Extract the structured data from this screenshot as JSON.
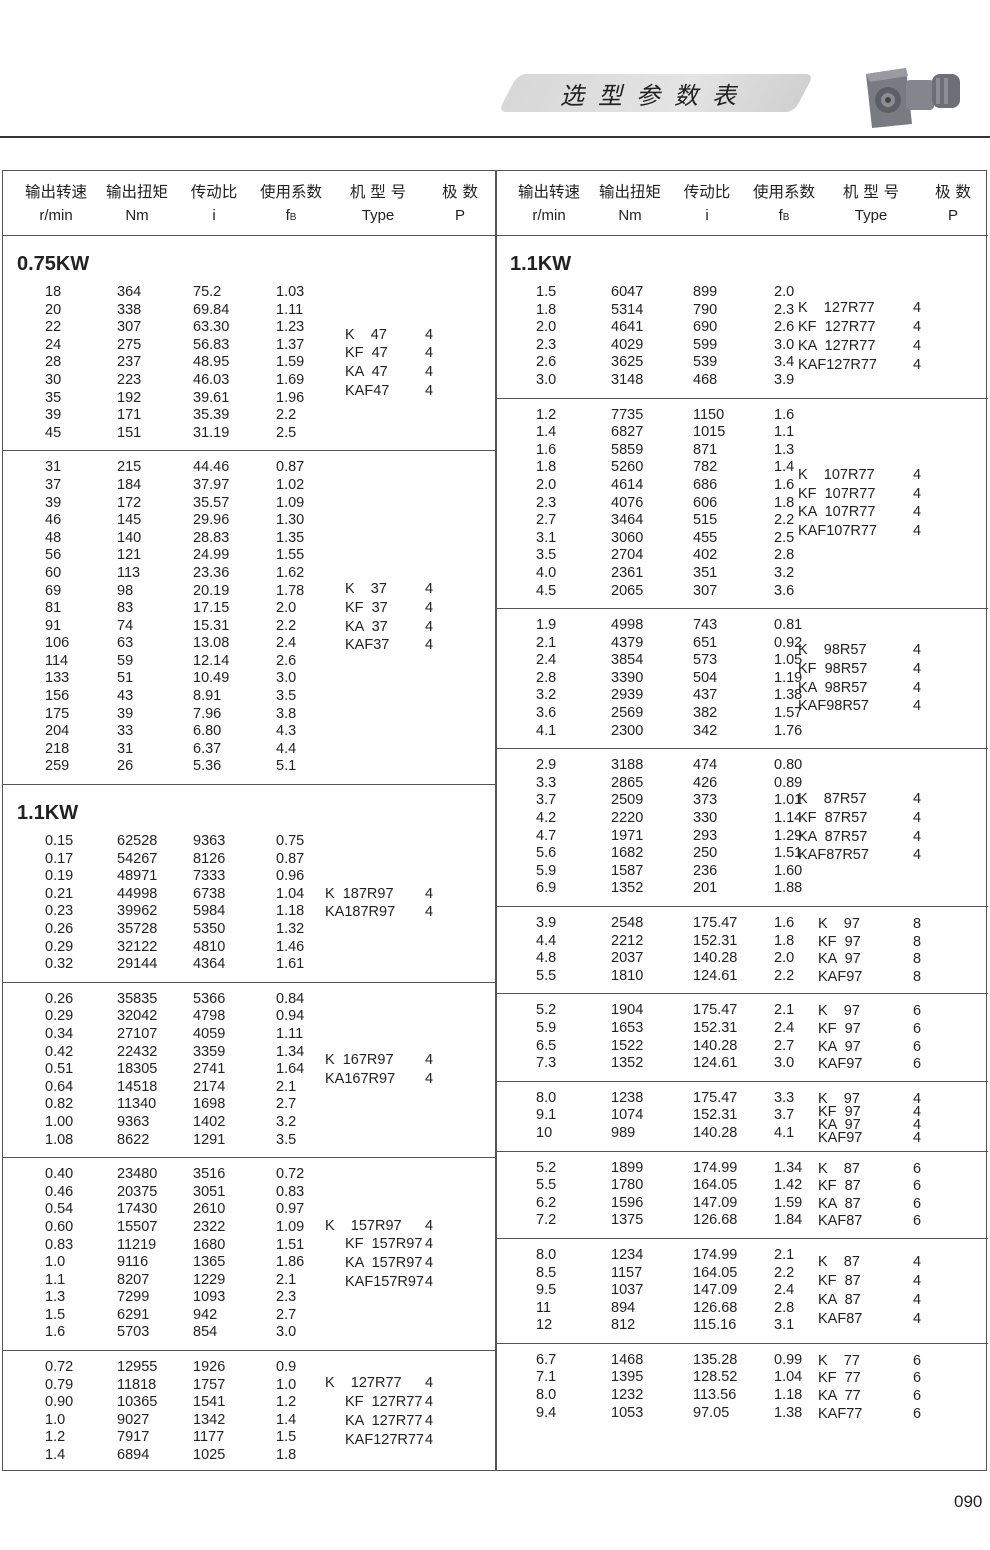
{
  "header": {
    "title": "选型参数表",
    "page_number": "090",
    "columns_cn": [
      "输出转速",
      "输出扭矩",
      "传动比",
      "使用系数",
      "机 型 号",
      "极 数"
    ],
    "columns_en": [
      "r/min",
      "Nm",
      "i",
      "f",
      "Type",
      "P"
    ],
    "fb_subscript": "B"
  },
  "left": [
    {
      "section": "0.75KW",
      "rows": [
        [
          "18",
          "364",
          "75.2",
          "1.03"
        ],
        [
          "20",
          "338",
          "69.84",
          "1.11"
        ],
        [
          "22",
          "307",
          "63.30",
          "1.23"
        ],
        [
          "24",
          "275",
          "56.83",
          "1.37"
        ],
        [
          "28",
          "237",
          "48.95",
          "1.59"
        ],
        [
          "30",
          "223",
          "46.03",
          "1.69"
        ],
        [
          "35",
          "192",
          "39.61",
          "1.96"
        ],
        [
          "39",
          "171",
          "35.39",
          "2.2"
        ],
        [
          "45",
          "151",
          "31.19",
          "2.5"
        ]
      ],
      "types": [
        [
          "K    47",
          "4"
        ],
        [
          "KF  47",
          "4"
        ],
        [
          "KA  47",
          "4"
        ],
        [
          "KAF47",
          "4"
        ]
      ]
    },
    {
      "rows": [
        [
          "31",
          "215",
          "44.46",
          "0.87"
        ],
        [
          "37",
          "184",
          "37.97",
          "1.02"
        ],
        [
          "39",
          "172",
          "35.57",
          "1.09"
        ],
        [
          "46",
          "145",
          "29.96",
          "1.30"
        ],
        [
          "48",
          "140",
          "28.83",
          "1.35"
        ],
        [
          "56",
          "121",
          "24.99",
          "1.55"
        ],
        [
          "60",
          "113",
          "23.36",
          "1.62"
        ],
        [
          "69",
          "98",
          "20.19",
          "1.78"
        ],
        [
          "81",
          "83",
          "17.15",
          "2.0"
        ],
        [
          "91",
          "74",
          "15.31",
          "2.2"
        ],
        [
          "106",
          "63",
          "13.08",
          "2.4"
        ],
        [
          "114",
          "59",
          "12.14",
          "2.6"
        ],
        [
          "133",
          "51",
          "10.49",
          "3.0"
        ],
        [
          "156",
          "43",
          "8.91",
          "3.5"
        ],
        [
          "175",
          "39",
          "7.96",
          "3.8"
        ],
        [
          "204",
          "33",
          "6.80",
          "4.3"
        ],
        [
          "218",
          "31",
          "6.37",
          "4.4"
        ],
        [
          "259",
          "26",
          "5.36",
          "5.1"
        ]
      ],
      "types": [
        [
          "K    37",
          "4"
        ],
        [
          "KF  37",
          "4"
        ],
        [
          "KA  37",
          "4"
        ],
        [
          "KAF37",
          "4"
        ]
      ]
    },
    {
      "section": "1.1KW",
      "rows": [
        [
          "0.15",
          "62528",
          "9363",
          "0.75"
        ],
        [
          "0.17",
          "54267",
          "8126",
          "0.87"
        ],
        [
          "0.19",
          "48971",
          "7333",
          "0.96"
        ],
        [
          "0.21",
          "44998",
          "6738",
          "1.04"
        ],
        [
          "0.23",
          "39962",
          "5984",
          "1.18"
        ],
        [
          "0.26",
          "35728",
          "5350",
          "1.32"
        ],
        [
          "0.29",
          "32122",
          "4810",
          "1.46"
        ],
        [
          "0.32",
          "29144",
          "4364",
          "1.61"
        ]
      ],
      "types": [
        [
          "K  187R97",
          "4"
        ],
        [
          "KA187R97",
          "4"
        ]
      ]
    },
    {
      "rows": [
        [
          "0.26",
          "35835",
          "5366",
          "0.84"
        ],
        [
          "0.29",
          "32042",
          "4798",
          "0.94"
        ],
        [
          "0.34",
          "27107",
          "4059",
          "1.11"
        ],
        [
          "0.42",
          "22432",
          "3359",
          "1.34"
        ],
        [
          "0.51",
          "18305",
          "2741",
          "1.64"
        ],
        [
          "0.64",
          "14518",
          "2174",
          "2.1"
        ],
        [
          "0.82",
          "11340",
          "1698",
          "2.7"
        ],
        [
          "1.00",
          "9363",
          "1402",
          "3.2"
        ],
        [
          "1.08",
          "8622",
          "1291",
          "3.5"
        ]
      ],
      "types": [
        [
          "K  167R97",
          "4"
        ],
        [
          "KA167R97",
          "4"
        ]
      ]
    },
    {
      "rows": [
        [
          "0.40",
          "23480",
          "3516",
          "0.72"
        ],
        [
          "0.46",
          "20375",
          "3051",
          "0.83"
        ],
        [
          "0.54",
          "17430",
          "2610",
          "0.97"
        ],
        [
          "0.60",
          "15507",
          "2322",
          "1.09"
        ],
        [
          "0.83",
          "11219",
          "1680",
          "1.51"
        ],
        [
          "1.0",
          "9116",
          "1365",
          "1.86"
        ],
        [
          "1.1",
          "8207",
          "1229",
          "2.1"
        ],
        [
          "1.3",
          "7299",
          "1093",
          "2.3"
        ],
        [
          "1.5",
          "6291",
          "942",
          "2.7"
        ],
        [
          "1.6",
          "5703",
          "854",
          "3.0"
        ]
      ],
      "types": [
        [
          "K    157R97",
          "4"
        ],
        [
          "KF  157R97",
          "4"
        ],
        [
          "KA  157R97",
          "4"
        ],
        [
          "KAF157R97",
          "4"
        ]
      ]
    },
    {
      "rows": [
        [
          "0.72",
          "12955",
          "1926",
          "0.9"
        ],
        [
          "0.79",
          "11818",
          "1757",
          "1.0"
        ],
        [
          "0.90",
          "10365",
          "1541",
          "1.2"
        ],
        [
          "1.0",
          "9027",
          "1342",
          "1.4"
        ],
        [
          "1.2",
          "7917",
          "1177",
          "1.5"
        ],
        [
          "1.4",
          "6894",
          "1025",
          "1.8"
        ]
      ],
      "types": [
        [
          "K    127R77",
          "4"
        ],
        [
          "KF  127R77",
          "4"
        ],
        [
          "KA  127R77",
          "4"
        ],
        [
          "KAF127R77",
          "4"
        ]
      ]
    }
  ],
  "right": [
    {
      "section": "1.1KW",
      "rows": [
        [
          "1.5",
          "6047",
          "899",
          "2.0"
        ],
        [
          "1.8",
          "5314",
          "790",
          "2.3"
        ],
        [
          "2.0",
          "4641",
          "690",
          "2.6"
        ],
        [
          "2.3",
          "4029",
          "599",
          "3.0"
        ],
        [
          "2.6",
          "3625",
          "539",
          "3.4"
        ],
        [
          "3.0",
          "3148",
          "468",
          "3.9"
        ]
      ],
      "types": [
        [
          "K    127R77",
          "4"
        ],
        [
          "KF  127R77",
          "4"
        ],
        [
          "KA  127R77",
          "4"
        ],
        [
          "KAF127R77",
          "4"
        ]
      ]
    },
    {
      "rows": [
        [
          "1.2",
          "7735",
          "1150",
          "1.6"
        ],
        [
          "1.4",
          "6827",
          "1015",
          "1.1"
        ],
        [
          "1.6",
          "5859",
          "871",
          "1.3"
        ],
        [
          "1.8",
          "5260",
          "782",
          "1.4"
        ],
        [
          "2.0",
          "4614",
          "686",
          "1.6"
        ],
        [
          "2.3",
          "4076",
          "606",
          "1.8"
        ],
        [
          "2.7",
          "3464",
          "515",
          "2.2"
        ],
        [
          "3.1",
          "3060",
          "455",
          "2.5"
        ],
        [
          "3.5",
          "2704",
          "402",
          "2.8"
        ],
        [
          "4.0",
          "2361",
          "351",
          "3.2"
        ],
        [
          "4.5",
          "2065",
          "307",
          "3.6"
        ]
      ],
      "types": [
        [
          "K    107R77",
          "4"
        ],
        [
          "KF  107R77",
          "4"
        ],
        [
          "KA  107R77",
          "4"
        ],
        [
          "KAF107R77",
          "4"
        ]
      ]
    },
    {
      "rows": [
        [
          "1.9",
          "4998",
          "743",
          "0.81"
        ],
        [
          "2.1",
          "4379",
          "651",
          "0.92"
        ],
        [
          "2.4",
          "3854",
          "573",
          "1.05"
        ],
        [
          "2.8",
          "3390",
          "504",
          "1.19"
        ],
        [
          "3.2",
          "2939",
          "437",
          "1.38"
        ],
        [
          "3.6",
          "2569",
          "382",
          "1.57"
        ],
        [
          "4.1",
          "2300",
          "342",
          "1.76"
        ]
      ],
      "types": [
        [
          "K    98R57",
          "4"
        ],
        [
          "KF  98R57",
          "4"
        ],
        [
          "KA  98R57",
          "4"
        ],
        [
          "KAF98R57",
          "4"
        ]
      ]
    },
    {
      "rows": [
        [
          "2.9",
          "3188",
          "474",
          "0.80"
        ],
        [
          "3.3",
          "2865",
          "426",
          "0.89"
        ],
        [
          "3.7",
          "2509",
          "373",
          "1.01"
        ],
        [
          "4.2",
          "2220",
          "330",
          "1.14"
        ],
        [
          "4.7",
          "1971",
          "293",
          "1.29"
        ],
        [
          "5.6",
          "1682",
          "250",
          "1.51"
        ],
        [
          "5.9",
          "1587",
          "236",
          "1.60"
        ],
        [
          "6.9",
          "1352",
          "201",
          "1.88"
        ]
      ],
      "types": [
        [
          "K    87R57",
          "4"
        ],
        [
          "KF  87R57",
          "4"
        ],
        [
          "KA  87R57",
          "4"
        ],
        [
          "KAF87R57",
          "4"
        ]
      ]
    },
    {
      "rows": [
        [
          "3.9",
          "2548",
          "175.47",
          "1.6"
        ],
        [
          "4.4",
          "2212",
          "152.31",
          "1.8"
        ],
        [
          "4.8",
          "2037",
          "140.28",
          "2.0"
        ],
        [
          "5.5",
          "1810",
          "124.61",
          "2.2"
        ]
      ],
      "types": [
        [
          "K    97",
          "8"
        ],
        [
          "KF  97",
          "8"
        ],
        [
          "KA  97",
          "8"
        ],
        [
          "KAF97",
          "8"
        ]
      ]
    },
    {
      "rows": [
        [
          "5.2",
          "1904",
          "175.47",
          "2.1"
        ],
        [
          "5.9",
          "1653",
          "152.31",
          "2.4"
        ],
        [
          "6.5",
          "1522",
          "140.28",
          "2.7"
        ],
        [
          "7.3",
          "1352",
          "124.61",
          "3.0"
        ]
      ],
      "types": [
        [
          "K    97",
          "6"
        ],
        [
          "KF  97",
          "6"
        ],
        [
          "KA  97",
          "6"
        ],
        [
          "KAF97",
          "6"
        ]
      ]
    },
    {
      "rows": [
        [
          "8.0",
          "1238",
          "175.47",
          "3.3"
        ],
        [
          "9.1",
          "1074",
          "152.31",
          "3.7"
        ],
        [
          "10",
          "989",
          "140.28",
          "4.1"
        ]
      ],
      "types": [
        [
          "K    97",
          "4"
        ],
        [
          "KF  97",
          "4"
        ],
        [
          "KA  97",
          "4"
        ],
        [
          "KAF97",
          "4"
        ]
      ]
    },
    {
      "rows": [
        [
          "5.2",
          "1899",
          "174.99",
          "1.34"
        ],
        [
          "5.5",
          "1780",
          "164.05",
          "1.42"
        ],
        [
          "6.2",
          "1596",
          "147.09",
          "1.59"
        ],
        [
          "7.2",
          "1375",
          "126.68",
          "1.84"
        ]
      ],
      "types": [
        [
          "K    87",
          "6"
        ],
        [
          "KF  87",
          "6"
        ],
        [
          "KA  87",
          "6"
        ],
        [
          "KAF87",
          "6"
        ]
      ]
    },
    {
      "rows": [
        [
          "8.0",
          "1234",
          "174.99",
          "2.1"
        ],
        [
          "8.5",
          "1157",
          "164.05",
          "2.2"
        ],
        [
          "9.5",
          "1037",
          "147.09",
          "2.4"
        ],
        [
          "11",
          "894",
          "126.68",
          "2.8"
        ],
        [
          "12",
          "812",
          "115.16",
          "3.1"
        ]
      ],
      "types": [
        [
          "K    87",
          "4"
        ],
        [
          "KF  87",
          "4"
        ],
        [
          "KA  87",
          "4"
        ],
        [
          "KAF87",
          "4"
        ]
      ]
    },
    {
      "rows": [
        [
          "6.7",
          "1468",
          "135.28",
          "0.99"
        ],
        [
          "7.1",
          "1395",
          "128.52",
          "1.04"
        ],
        [
          "8.0",
          "1232",
          "113.56",
          "1.18"
        ],
        [
          "9.4",
          "1053",
          "97.05",
          "1.38"
        ]
      ],
      "types": [
        [
          "K    77",
          "6"
        ],
        [
          "KF  77",
          "6"
        ],
        [
          "KA  77",
          "6"
        ],
        [
          "KAF77",
          "6"
        ]
      ]
    }
  ]
}
